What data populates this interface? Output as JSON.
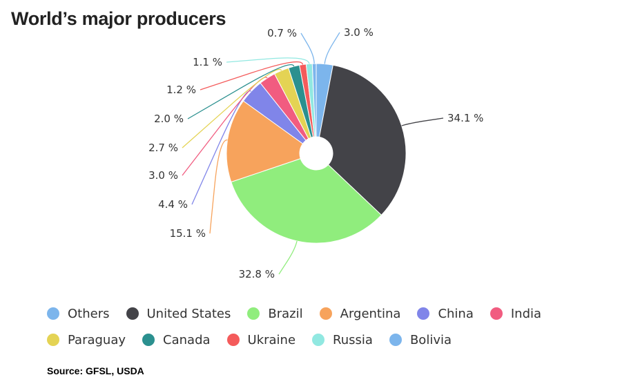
{
  "chart_data": {
    "type": "pie",
    "variant": "donut",
    "title": "World’s major producers",
    "categories": [
      "Others",
      "United States",
      "Brazil",
      "Argentina",
      "China",
      "India",
      "Paraguay",
      "Canada",
      "Ukraine",
      "Russia",
      "Bolivia"
    ],
    "values": [
      3.0,
      34.1,
      32.8,
      15.1,
      4.4,
      3.0,
      2.7,
      2.0,
      1.2,
      1.1,
      0.7
    ],
    "data_labels": [
      "3.0 %",
      "34.1 %",
      "32.8 %",
      "15.1 %",
      "4.4 %",
      "3.0 %",
      "2.7 %",
      "2.0 %",
      "1.2 %",
      "1.1 %",
      "0.7 %"
    ],
    "unit": "%",
    "colors": [
      "#7cb5ec",
      "#434348",
      "#90ed7d",
      "#f7a35c",
      "#8085e9",
      "#f15c80",
      "#e4d354",
      "#2b908f",
      "#f45b5b",
      "#91e8e1",
      "#7cb5ec"
    ],
    "legend_placement": "bottom"
  },
  "source": "Source: GFSL, USDA"
}
